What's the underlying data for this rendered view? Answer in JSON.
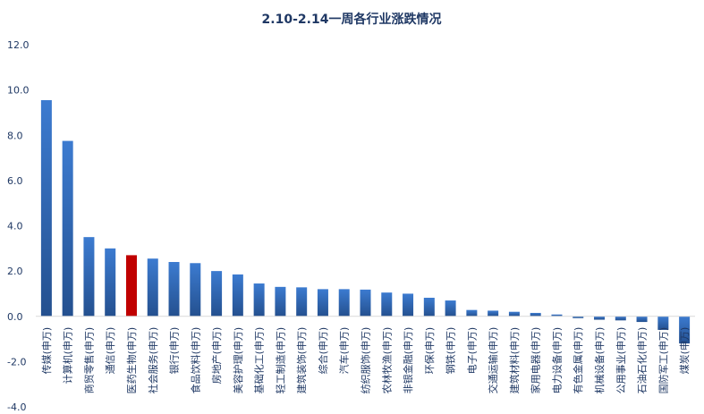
{
  "chart_data": {
    "type": "bar",
    "title": "2.10-2.14一周各行业涨跌情况",
    "xlabel": "",
    "ylabel": "",
    "ylim": [
      -4,
      12
    ],
    "yticks": [
      "-4.0",
      "-2.0",
      "0.0",
      "2.0",
      "4.0",
      "6.0",
      "8.0",
      "10.0",
      "12.0"
    ],
    "grid": false,
    "legend": "none",
    "colors": {
      "bar": "#2e64b0",
      "highlight": "#c00000",
      "text": "#1f3864"
    },
    "highlight_category": "医药生物(申万)",
    "categories": [
      "传媒(申万)",
      "计算机(申万)",
      "商贸零售(申万)",
      "通信(申万)",
      "医药生物(申万)",
      "社会服务(申万)",
      "银行(申万)",
      "食品饮料(申万)",
      "房地产(申万)",
      "美容护理(申万)",
      "基础化工(申万)",
      "轻工制造(申万)",
      "建筑装饰(申万)",
      "综合(申万)",
      "汽车(申万)",
      "纺织服饰(申万)",
      "农林牧渔(申万)",
      "非银金融(申万)",
      "环保(申万)",
      "钢铁(申万)",
      "电子(申万)",
      "交通运输(申万)",
      "建筑材料(申万)",
      "家用电器(申万)",
      "电力设备(申万)",
      "有色金属(申万)",
      "机械设备(申万)",
      "公用事业(申万)",
      "石油石化(申万)",
      "国防军工(申万)",
      "煤炭(申万)"
    ],
    "values": [
      9.55,
      7.75,
      3.5,
      3.0,
      2.7,
      2.55,
      2.4,
      2.35,
      2.0,
      1.85,
      1.45,
      1.3,
      1.28,
      1.2,
      1.2,
      1.18,
      1.05,
      1.0,
      0.82,
      0.7,
      0.28,
      0.25,
      0.2,
      0.15,
      0.08,
      -0.08,
      -0.15,
      -0.18,
      -0.25,
      -0.6,
      -1.2
    ]
  }
}
